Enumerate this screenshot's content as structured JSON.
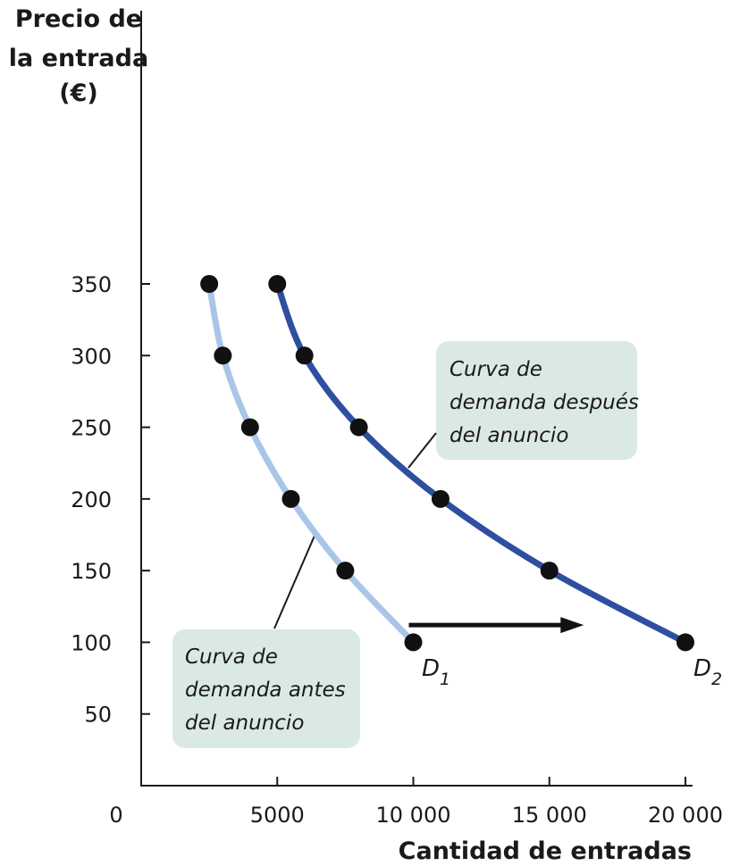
{
  "chart_data": {
    "type": "line",
    "ylabel_lines": [
      "Precio de",
      "la entrada",
      "(€)"
    ],
    "xlabel": "Cantidad de entradas",
    "origin_label": "0",
    "xlim": [
      0,
      20000
    ],
    "ylim": [
      0,
      450
    ],
    "x_ticks": [
      5000,
      10000,
      15000,
      20000
    ],
    "x_tick_labels": [
      "5000",
      "10 000",
      "15 000",
      "20 000"
    ],
    "y_ticks": [
      50,
      100,
      150,
      200,
      250,
      300,
      350
    ],
    "y_tick_labels": [
      "50",
      "100",
      "150",
      "200",
      "250",
      "300",
      "350"
    ],
    "series": [
      {
        "name": "D",
        "subscript": "1",
        "color": "#a9c6e8",
        "points": [
          {
            "x": 2500,
            "y": 350
          },
          {
            "x": 3000,
            "y": 300
          },
          {
            "x": 4000,
            "y": 250
          },
          {
            "x": 5500,
            "y": 200
          },
          {
            "x": 7500,
            "y": 150
          },
          {
            "x": 10000,
            "y": 100
          }
        ]
      },
      {
        "name": "D",
        "subscript": "2",
        "color": "#2e4fa0",
        "points": [
          {
            "x": 5000,
            "y": 350
          },
          {
            "x": 6000,
            "y": 300
          },
          {
            "x": 8000,
            "y": 250
          },
          {
            "x": 11000,
            "y": 200
          },
          {
            "x": 15000,
            "y": 150
          },
          {
            "x": 20000,
            "y": 100
          }
        ]
      }
    ],
    "annotations": [
      {
        "lines": [
          "Curva de",
          "demanda antes",
          "del anuncio"
        ],
        "points_to": "D1"
      },
      {
        "lines": [
          "Curva de",
          "demanda después",
          "del anuncio"
        ],
        "points_to": "D2"
      }
    ],
    "shift_arrow": {
      "from": {
        "x": 10000,
        "y": 112
      },
      "to": {
        "x": 16200,
        "y": 112
      }
    },
    "colors": {
      "axis": "#1a1a1a",
      "point": "#111111",
      "note_box": "#dbe9e4",
      "arrow": "#111111"
    }
  }
}
